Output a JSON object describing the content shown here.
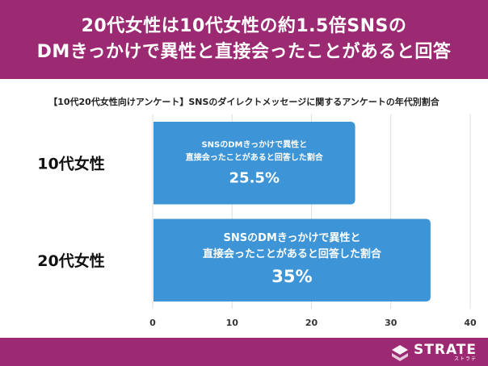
{
  "header": {
    "line1": "20代女性は10代女性の約1.5倍SNSの",
    "line2": "DMきっかけで異性と直接会ったことがあると回答"
  },
  "chart_data": {
    "type": "bar",
    "orientation": "horizontal",
    "title": "【10代20代女性向けアンケート】SNSのダイレクトメッセージに関するアンケートの年代別割合",
    "categories": [
      "10代女性",
      "20代女性"
    ],
    "values": [
      25.5,
      35
    ],
    "data_labels": [
      "25.5%",
      "35%"
    ],
    "bar_caption_line1": "SNSのDMきっかけで異性と",
    "bar_caption_line2": "直接会ったことがあると回答した割合",
    "xlim": [
      0,
      40
    ],
    "xticks": [
      "0",
      "10",
      "20",
      "30",
      "40"
    ],
    "grid": true,
    "bar_color": "#3d95d7"
  },
  "footer": {
    "logo_text": "STRATE",
    "logo_sub": "ストラテ"
  }
}
